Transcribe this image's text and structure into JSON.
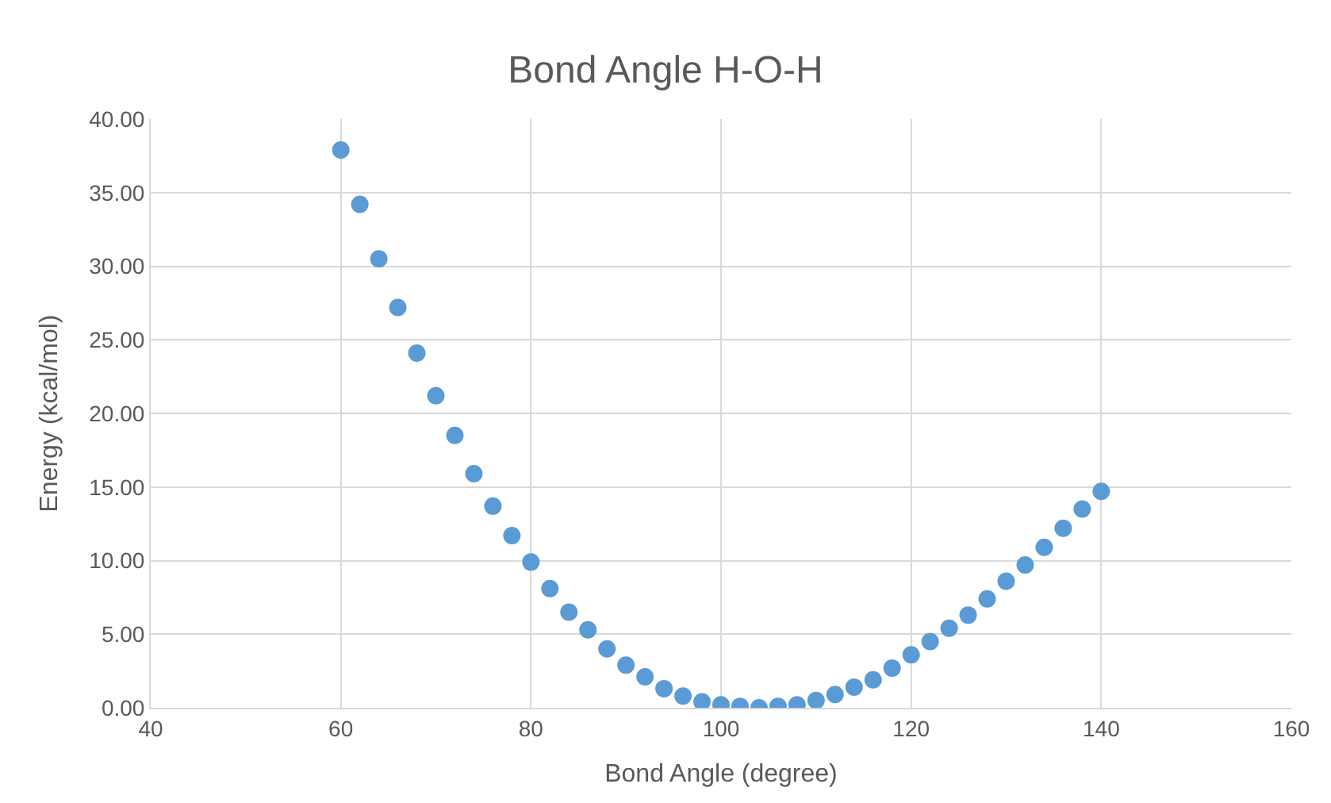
{
  "chart_data": {
    "type": "scatter",
    "title": "Bond Angle H-O-H",
    "xlabel": "Bond Angle (degree)",
    "ylabel": "Energy (kcal/mol)",
    "x": [
      60,
      62,
      64,
      66,
      68,
      70,
      72,
      74,
      76,
      78,
      80,
      82,
      84,
      86,
      88,
      90,
      92,
      94,
      96,
      98,
      100,
      102,
      104,
      106,
      108,
      110,
      112,
      114,
      116,
      118,
      120,
      122,
      124,
      126,
      128,
      130,
      132,
      134,
      136,
      138,
      140
    ],
    "series": [
      {
        "color": "#5b9bd5",
        "values": [
          37.9,
          34.2,
          30.5,
          27.2,
          24.1,
          21.2,
          18.5,
          15.9,
          13.7,
          11.7,
          9.9,
          8.1,
          6.5,
          5.3,
          4.0,
          2.9,
          2.1,
          1.3,
          0.8,
          0.4,
          0.2,
          0.1,
          0.0,
          0.1,
          0.2,
          0.5,
          0.9,
          1.4,
          1.9,
          2.7,
          3.6,
          4.5,
          5.4,
          6.3,
          7.4,
          8.6,
          9.7,
          10.9,
          12.2,
          13.5,
          14.7
        ]
      }
    ],
    "xlim": [
      40,
      160
    ],
    "xticks": [
      40,
      60,
      80,
      100,
      120,
      140,
      160
    ],
    "ylim": [
      0,
      40
    ],
    "yticks": [
      {
        "value": 0,
        "label": "0.00"
      },
      {
        "value": 5,
        "label": "5.00"
      },
      {
        "value": 10,
        "label": "10.00"
      },
      {
        "value": 15,
        "label": "15.00"
      },
      {
        "value": 20,
        "label": "20.00"
      },
      {
        "value": 25,
        "label": "25.00"
      },
      {
        "value": 30,
        "label": "30.00"
      },
      {
        "value": 35,
        "label": "35.00"
      },
      {
        "value": 40,
        "label": "40.00"
      }
    ],
    "grid": true
  }
}
